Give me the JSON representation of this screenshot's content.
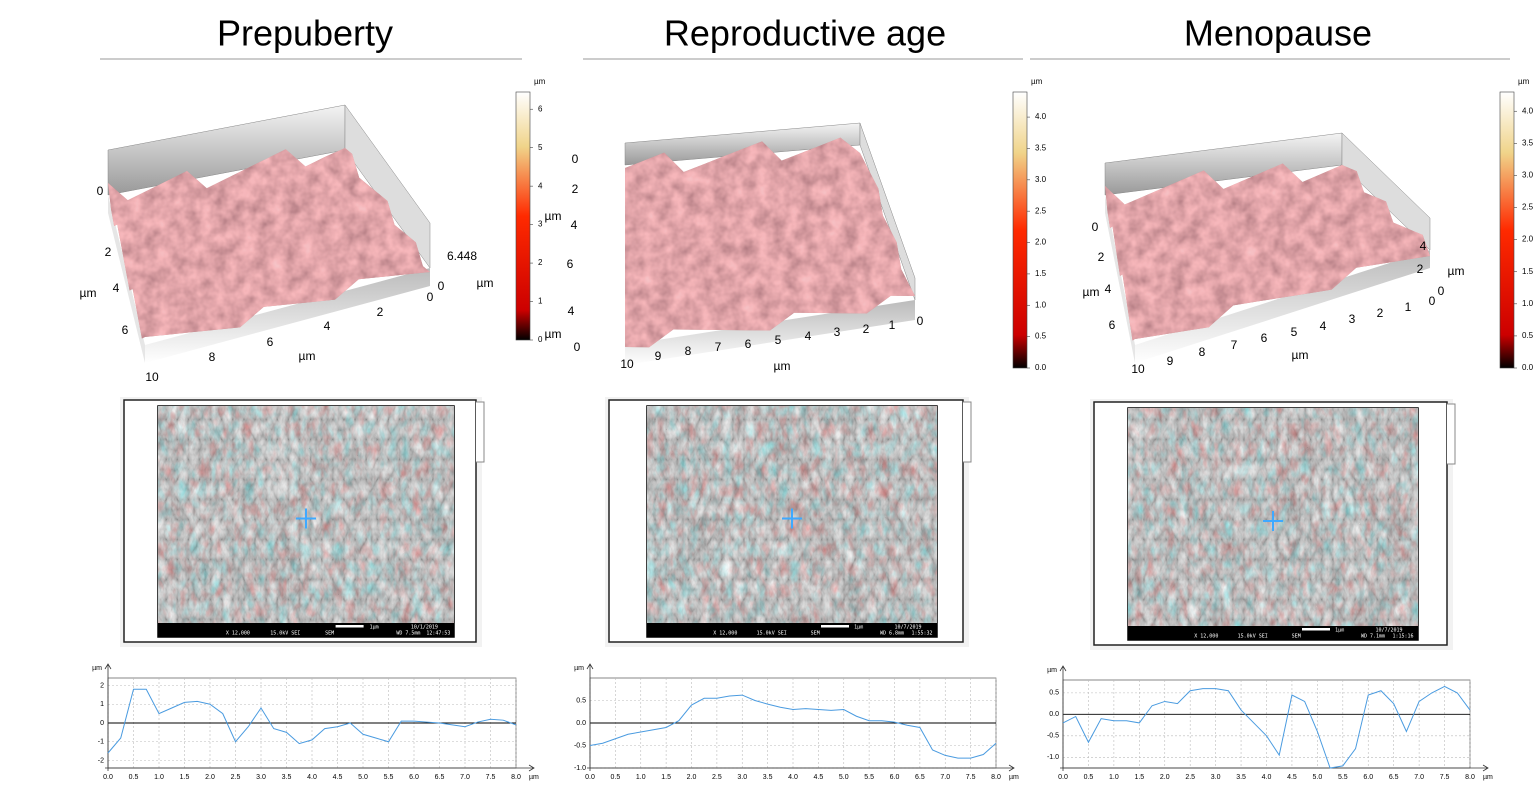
{
  "panels": [
    {
      "title": "Prepuberty",
      "surface": {
        "labels": [
          "0",
          "2",
          "µm",
          "4",
          "6",
          "10",
          "8",
          "6",
          "4",
          "2",
          "µm",
          "0",
          "6.448",
          "0",
          "µm"
        ]
      },
      "colorbar": {
        "unit": "µm",
        "lim": [
          0,
          6.448
        ],
        "ticks": [
          0,
          1,
          2,
          3,
          4,
          5,
          6
        ]
      },
      "sem": {
        "info": [
          "X 12,000",
          "15.0kV SEI",
          "SEM",
          "WD 7.5mm",
          "12:47:53",
          "1µm",
          "10/1/2019"
        ]
      },
      "profile": {
        "y_unit": "µm",
        "x_unit": "µm",
        "xlim": [
          0,
          8
        ],
        "ylim": [
          -2.4,
          2.4
        ],
        "xticks": [
          {
            "value": 0,
            "label": "0.0"
          },
          {
            "value": 0.5,
            "label": "0.5"
          },
          {
            "value": 1,
            "label": "1.0"
          },
          {
            "value": 1.5,
            "label": "1.5"
          },
          {
            "value": 2,
            "label": "2.0"
          },
          {
            "value": 2.5,
            "label": "2.5"
          },
          {
            "value": 3,
            "label": "3.0"
          },
          {
            "value": 3.5,
            "label": "3.5"
          },
          {
            "value": 4,
            "label": "4.0"
          },
          {
            "value": 4.5,
            "label": "4.5"
          },
          {
            "value": 5,
            "label": "5.0"
          },
          {
            "value": 5.5,
            "label": "5.5"
          },
          {
            "value": 6,
            "label": "6.0"
          },
          {
            "value": 6.5,
            "label": "6.5"
          },
          {
            "value": 7,
            "label": "7.0"
          },
          {
            "value": 7.5,
            "label": "7.5"
          },
          {
            "value": 8,
            "label": "8.0"
          }
        ],
        "yticks": [
          -2,
          -1,
          0,
          1,
          2
        ],
        "x": [
          0,
          0.25,
          0.5,
          0.75,
          1,
          1.25,
          1.5,
          1.75,
          2,
          2.25,
          2.5,
          2.75,
          3,
          3.25,
          3.5,
          3.75,
          4,
          4.25,
          4.5,
          4.75,
          5,
          5.25,
          5.5,
          5.75,
          6,
          6.25,
          6.5,
          6.75,
          7,
          7.25,
          7.5,
          7.75,
          8
        ],
        "y": [
          -1.6,
          -0.8,
          1.8,
          1.8,
          0.5,
          0.8,
          1.1,
          1.15,
          1.0,
          0.5,
          -1.0,
          -0.2,
          0.8,
          -0.3,
          -0.5,
          -1.1,
          -0.9,
          -0.3,
          -0.2,
          0.0,
          -0.6,
          -0.8,
          -1.0,
          0.1,
          0.1,
          0.05,
          0.0,
          -0.1,
          -0.2,
          0.05,
          0.2,
          0.15,
          -0.1
        ]
      }
    },
    {
      "title": "Reproductive age",
      "surface": {
        "labels": [
          "0",
          "2",
          "µm",
          "4",
          "6",
          "4",
          "µm",
          "0",
          "10",
          "9",
          "8",
          "7",
          "6",
          "5",
          "4",
          "3",
          "2",
          "1",
          "0",
          "µm"
        ]
      },
      "colorbar": {
        "unit": "µm",
        "lim": [
          0,
          4.4
        ],
        "ticks": [
          {
            "value": 0,
            "label": "0.0"
          },
          {
            "value": 0.5,
            "label": "0.5"
          },
          {
            "value": 1,
            "label": "1.0"
          },
          {
            "value": 1.5,
            "label": "1.5"
          },
          {
            "value": 2,
            "label": "2.0"
          },
          {
            "value": 2.5,
            "label": "2.5"
          },
          {
            "value": 3,
            "label": "3.0"
          },
          {
            "value": 3.5,
            "label": "3.5"
          },
          {
            "value": 4,
            "label": "4.0"
          }
        ]
      },
      "sem": {
        "info": [
          "X 12,000",
          "15.0kV SEI",
          "SEM",
          "WD 6.8mm",
          "1:55:32",
          "1µm",
          "10/7/2019"
        ]
      },
      "profile": {
        "y_unit": "µm",
        "x_unit": "µm",
        "xlim": [
          0,
          8
        ],
        "ylim": [
          -1.0,
          1.0
        ],
        "xticks": [
          {
            "value": 0,
            "label": "0.0"
          },
          {
            "value": 0.5,
            "label": "0.5"
          },
          {
            "value": 1,
            "label": "1.0"
          },
          {
            "value": 1.5,
            "label": "1.5"
          },
          {
            "value": 2,
            "label": "2.0"
          },
          {
            "value": 2.5,
            "label": "2.5"
          },
          {
            "value": 3,
            "label": "3.0"
          },
          {
            "value": 3.5,
            "label": "3.5"
          },
          {
            "value": 4,
            "label": "4.0"
          },
          {
            "value": 4.5,
            "label": "4.5"
          },
          {
            "value": 5,
            "label": "5.0"
          },
          {
            "value": 5.5,
            "label": "5.5"
          },
          {
            "value": 6,
            "label": "6.0"
          },
          {
            "value": 6.5,
            "label": "6.5"
          },
          {
            "value": 7,
            "label": "7.0"
          },
          {
            "value": 7.5,
            "label": "7.5"
          },
          {
            "value": 8,
            "label": "8.0"
          }
        ],
        "yticks": [
          {
            "value": -1,
            "label": "-1.0"
          },
          {
            "value": -0.5,
            "label": "-0.5"
          },
          {
            "value": 0,
            "label": "0.0"
          },
          {
            "value": 0.5,
            "label": "0.5"
          }
        ],
        "x": [
          0,
          0.25,
          0.5,
          0.75,
          1,
          1.25,
          1.5,
          1.75,
          2,
          2.25,
          2.5,
          2.75,
          3,
          3.25,
          3.5,
          3.75,
          4,
          4.25,
          4.5,
          4.75,
          5,
          5.25,
          5.5,
          5.75,
          6,
          6.25,
          6.5,
          6.75,
          7,
          7.25,
          7.5,
          7.75,
          8
        ],
        "y": [
          -0.5,
          -0.45,
          -0.35,
          -0.25,
          -0.2,
          -0.15,
          -0.1,
          0.05,
          0.4,
          0.55,
          0.55,
          0.6,
          0.62,
          0.5,
          0.42,
          0.35,
          0.3,
          0.32,
          0.3,
          0.28,
          0.3,
          0.15,
          0.05,
          0.05,
          0.02,
          -0.05,
          -0.1,
          -0.6,
          -0.72,
          -0.78,
          -0.78,
          -0.7,
          -0.45
        ]
      }
    },
    {
      "title": "Menopause",
      "surface": {
        "labels": [
          "0",
          "2",
          "µm",
          "4",
          "6",
          "4",
          "2",
          "µm",
          "0",
          "10",
          "9",
          "8",
          "7",
          "6",
          "5",
          "4",
          "3",
          "2",
          "1",
          "0",
          "µm"
        ]
      },
      "colorbar": {
        "unit": "µm",
        "lim": [
          0,
          4.3
        ],
        "ticks": [
          {
            "value": 0,
            "label": "0.0"
          },
          {
            "value": 0.5,
            "label": "0.5"
          },
          {
            "value": 1,
            "label": "1.0"
          },
          {
            "value": 1.5,
            "label": "1.5"
          },
          {
            "value": 2,
            "label": "2.0"
          },
          {
            "value": 2.5,
            "label": "2.5"
          },
          {
            "value": 3,
            "label": "3.0"
          },
          {
            "value": 3.5,
            "label": "3.5"
          },
          {
            "value": 4,
            "label": "4.0"
          }
        ]
      },
      "sem": {
        "info": [
          "X 12,000",
          "15.0kV SEI",
          "SEM",
          "WD 7.1mm",
          "1:15:16",
          "1µm",
          "10/7/2019"
        ]
      },
      "profile": {
        "y_unit": "µm",
        "x_unit": "µm",
        "xlim": [
          0,
          8
        ],
        "ylim": [
          -1.25,
          0.8
        ],
        "xticks": [
          {
            "value": 0,
            "label": "0.0"
          },
          {
            "value": 0.5,
            "label": "0.5"
          },
          {
            "value": 1,
            "label": "1.0"
          },
          {
            "value": 1.5,
            "label": "1.5"
          },
          {
            "value": 2,
            "label": "2.0"
          },
          {
            "value": 2.5,
            "label": "2.5"
          },
          {
            "value": 3,
            "label": "3.0"
          },
          {
            "value": 3.5,
            "label": "3.5"
          },
          {
            "value": 4,
            "label": "4.0"
          },
          {
            "value": 4.5,
            "label": "4.5"
          },
          {
            "value": 5,
            "label": "5.0"
          },
          {
            "value": 5.5,
            "label": "5.5"
          },
          {
            "value": 6,
            "label": "6.0"
          },
          {
            "value": 6.5,
            "label": "6.5"
          },
          {
            "value": 7,
            "label": "7.0"
          },
          {
            "value": 7.5,
            "label": "7.5"
          },
          {
            "value": 8,
            "label": "8.0"
          }
        ],
        "yticks": [
          {
            "value": -1,
            "label": "-1.0"
          },
          {
            "value": -0.5,
            "label": "-0.5"
          },
          {
            "value": 0,
            "label": "0.0"
          },
          {
            "value": 0.5,
            "label": "0.5"
          }
        ],
        "x": [
          0,
          0.25,
          0.5,
          0.75,
          1,
          1.25,
          1.5,
          1.75,
          2,
          2.25,
          2.5,
          2.75,
          3,
          3.25,
          3.5,
          3.75,
          4,
          4.25,
          4.5,
          4.75,
          5,
          5.25,
          5.5,
          5.75,
          6,
          6.25,
          6.5,
          6.75,
          7,
          7.25,
          7.5,
          7.75,
          8
        ],
        "y": [
          -0.2,
          -0.05,
          -0.65,
          -0.1,
          -0.15,
          -0.15,
          -0.2,
          0.2,
          0.3,
          0.25,
          0.55,
          0.6,
          0.6,
          0.55,
          0.1,
          -0.2,
          -0.5,
          -0.95,
          0.45,
          0.3,
          -0.4,
          -1.25,
          -1.2,
          -0.8,
          0.45,
          0.55,
          0.25,
          -0.4,
          0.3,
          0.5,
          0.65,
          0.5,
          0.1
        ]
      }
    }
  ]
}
